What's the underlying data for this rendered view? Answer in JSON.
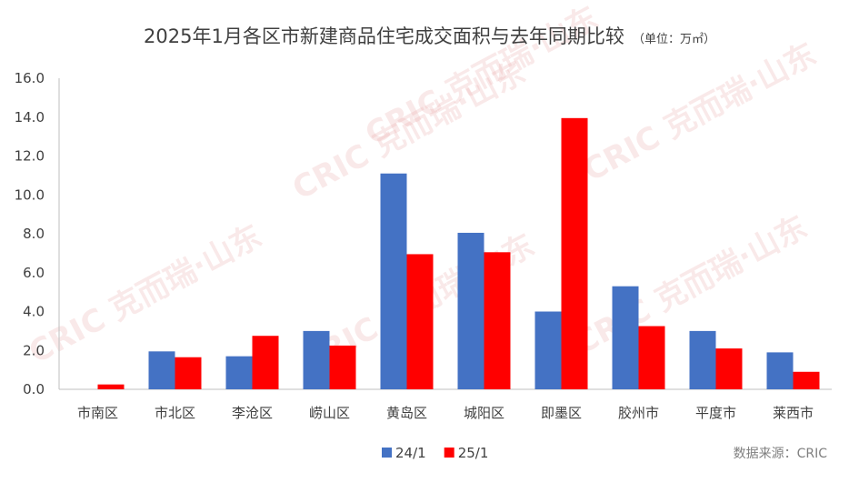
{
  "chart_data": {
    "type": "bar",
    "title": "2025年1月各区市新建商品住宅成交面积与去年同期比较",
    "unit_note": "（单位：万㎡）",
    "categories": [
      "市南区",
      "市北区",
      "李沧区",
      "崂山区",
      "黄岛区",
      "城阳区",
      "即墨区",
      "胶州市",
      "平度市",
      "莱西市"
    ],
    "series": [
      {
        "name": "24/1",
        "color": "#4472C4",
        "values": [
          0.0,
          1.95,
          1.7,
          3.0,
          11.1,
          8.05,
          4.0,
          5.3,
          3.0,
          1.9
        ]
      },
      {
        "name": "25/1",
        "color": "#FF0000",
        "values": [
          0.25,
          1.65,
          2.75,
          2.25,
          6.95,
          7.05,
          13.95,
          3.25,
          2.1,
          0.9
        ]
      }
    ],
    "ylim": [
      0,
      16
    ],
    "yticks": [
      "0.0",
      "2.0",
      "4.0",
      "6.0",
      "8.0",
      "10.0",
      "12.0",
      "14.0",
      "16.0"
    ],
    "grid": false,
    "legend_position": "bottom",
    "source": "数据来源：CRIC",
    "watermark": "CRIC 克而瑞·山东"
  }
}
